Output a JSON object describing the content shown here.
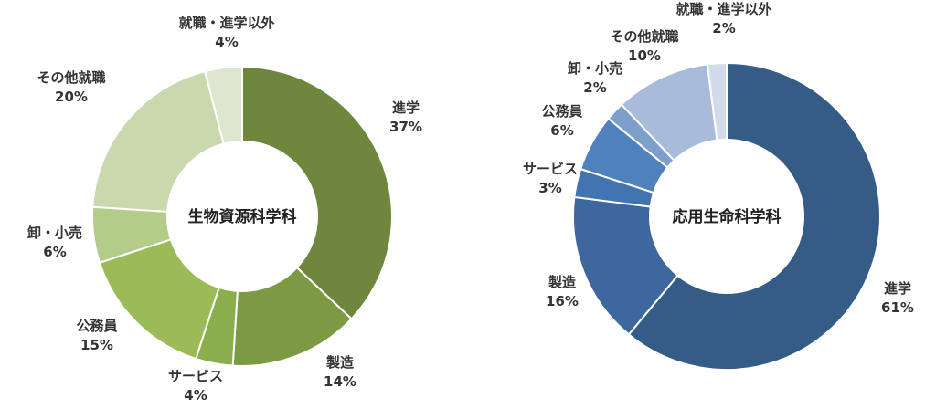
{
  "chart_data": [
    {
      "type": "pie",
      "title": "生物資源科学科",
      "categories": [
        "進学",
        "製造",
        "サービス",
        "公務員",
        "卸・小売",
        "その他就職",
        "就職・進学以外"
      ],
      "values": [
        37,
        14,
        4,
        15,
        6,
        20,
        4
      ],
      "value_labels": [
        "37%",
        "14%",
        "4%",
        "15%",
        "6%",
        "20%",
        "4%"
      ],
      "colors": [
        "#6e873c",
        "#7b9a43",
        "#8aae4c",
        "#9bbb59",
        "#b3cc8a",
        "#c9d8ad",
        "#dde7cf"
      ]
    },
    {
      "type": "pie",
      "title": "応用生命科学科",
      "categories": [
        "進学",
        "製造",
        "サービス",
        "公務員",
        "卸・小売",
        "その他就職",
        "就職・進学以外"
      ],
      "values": [
        61,
        16,
        3,
        6,
        2,
        10,
        2
      ],
      "value_labels": [
        "61%",
        "16%",
        "3%",
        "6%",
        "2%",
        "10%",
        "2%"
      ],
      "colors": [
        "#355b87",
        "#3e67a0",
        "#4374b2",
        "#4f81bd",
        "#7f9fcb",
        "#a9bbdb",
        "#d1dbeb"
      ]
    }
  ]
}
